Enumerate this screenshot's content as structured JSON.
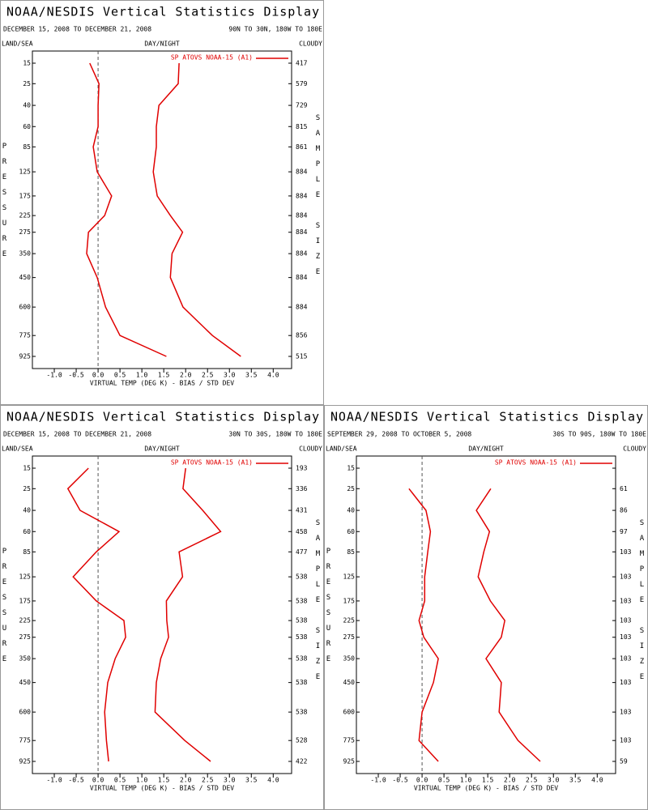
{
  "chart_data": [
    {
      "type": "line",
      "title": "NOAA/NESDIS Vertical Statistics Display",
      "date_range": "DECEMBER 15, 2008 TO DECEMBER 21, 2008",
      "region": "90N TO 30N, 180W TO 180E",
      "land_sea_label": "LAND/SEA",
      "day_night_label": "DAY/NIGHT",
      "cloudy_label": "CLOUDY",
      "ylabel": "PRESSURE",
      "y2label": "SAMPLE SIZE",
      "xlabel": "VIRTUAL TEMP (DEG K) - BIAS / STD DEV",
      "y": [
        15,
        25,
        40,
        60,
        85,
        125,
        175,
        225,
        275,
        350,
        450,
        600,
        775,
        925
      ],
      "sample_size": [
        417,
        579,
        729,
        815,
        861,
        884,
        884,
        884,
        884,
        884,
        884,
        884,
        856,
        515
      ],
      "series": [
        {
          "name": "SP ATOVS NOAA-15 (A1)",
          "color": "#e00000",
          "bias": [
            -0.19,
            0.02,
            0,
            0,
            -0.11,
            -0.02,
            0.31,
            0.15,
            -0.22,
            -0.26,
            -0.02,
            0.17,
            0.5,
            1.56
          ],
          "std_dev": [
            1.85,
            1.83,
            1.39,
            1.33,
            1.33,
            1.26,
            1.35,
            1.65,
            1.93,
            1.69,
            1.65,
            1.94,
            2.61,
            3.26
          ]
        }
      ],
      "xlim": [
        -1.5,
        4.42
      ],
      "xticks": [
        {
          "value": -1,
          "label": "-1.0"
        },
        {
          "value": -0.5,
          "label": "-0.5"
        },
        {
          "value": 0,
          "label": "0.0"
        },
        {
          "value": 0.5,
          "label": "0.5"
        },
        {
          "value": 1,
          "label": "1.0"
        },
        {
          "value": 1.5,
          "label": "1.5"
        },
        {
          "value": 2,
          "label": "2.0"
        },
        {
          "value": 2.5,
          "label": "2.5"
        },
        {
          "value": 3,
          "label": "3.0"
        },
        {
          "value": 3.5,
          "label": "3.5"
        },
        {
          "value": 4,
          "label": "4.0"
        }
      ]
    },
    {
      "type": "line",
      "title": "NOAA/NESDIS Vertical Statistics Display",
      "date_range": "DECEMBER 15, 2008 TO DECEMBER 21, 2008",
      "region": "30N TO 30S, 180W TO 180E",
      "land_sea_label": "LAND/SEA",
      "day_night_label": "DAY/NIGHT",
      "cloudy_label": "CLOUDY",
      "ylabel": "PRESSURE",
      "y2label": "SAMPLE SIZE",
      "xlabel": "VIRTUAL TEMP (DEG K) - BIAS / STD DEV",
      "y": [
        15,
        25,
        40,
        60,
        85,
        125,
        175,
        225,
        275,
        350,
        450,
        600,
        775,
        925
      ],
      "sample_size": [
        193,
        336,
        431,
        458,
        477,
        538,
        538,
        538,
        538,
        538,
        538,
        538,
        528,
        422
      ],
      "series": [
        {
          "name": "SP ATOVS NOAA-15 (A1)",
          "color": "#e00000",
          "bias": [
            -0.22,
            -0.69,
            -0.41,
            0.48,
            -0.04,
            -0.57,
            -0.04,
            0.59,
            0.63,
            0.39,
            0.22,
            0.15,
            0.19,
            0.24
          ],
          "std_dev": [
            2.0,
            1.94,
            2.39,
            2.8,
            1.85,
            1.93,
            1.56,
            1.57,
            1.61,
            1.43,
            1.33,
            1.3,
            1.98,
            2.57
          ]
        }
      ],
      "xlim": [
        -1.5,
        4.42
      ],
      "xticks": [
        {
          "value": -1,
          "label": "-1.0"
        },
        {
          "value": -0.5,
          "label": "-0.5"
        },
        {
          "value": 0,
          "label": "0.0"
        },
        {
          "value": 0.5,
          "label": "0.5"
        },
        {
          "value": 1,
          "label": "1.0"
        },
        {
          "value": 1.5,
          "label": "1.5"
        },
        {
          "value": 2,
          "label": "2.0"
        },
        {
          "value": 2.5,
          "label": "2.5"
        },
        {
          "value": 3,
          "label": "3.0"
        },
        {
          "value": 3.5,
          "label": "3.5"
        },
        {
          "value": 4,
          "label": "4.0"
        }
      ]
    },
    {
      "type": "line",
      "title": "NOAA/NESDIS Vertical Statistics Display",
      "date_range": "SEPTEMBER 29, 2008 TO OCTOBER 5, 2008",
      "region": "30S TO 90S, 180W TO 180E",
      "land_sea_label": "LAND/SEA",
      "day_night_label": "DAY/NIGHT",
      "cloudy_label": "CLOUDY",
      "ylabel": "PRESSURE",
      "y2label": "SAMPLE SIZE",
      "xlabel": "VIRTUAL TEMP (DEG K) - BIAS / STD DEV",
      "y": [
        15,
        25,
        40,
        60,
        85,
        125,
        175,
        225,
        275,
        350,
        450,
        600,
        775,
        925
      ],
      "sample_size": [
        null,
        61,
        86,
        97,
        103,
        103,
        103,
        103,
        103,
        103,
        103,
        103,
        103,
        59
      ],
      "series": [
        {
          "name": "SP ATOVS NOAA-15 (A1)",
          "color": "#e00000",
          "bias": [
            null,
            -0.3,
            0.09,
            0.19,
            0.13,
            0.06,
            0.06,
            -0.07,
            0.04,
            0.37,
            0.26,
            0,
            -0.07,
            0.37
          ],
          "std_dev": [
            null,
            1.57,
            1.24,
            1.54,
            1.41,
            1.28,
            1.56,
            1.89,
            1.81,
            1.46,
            1.81,
            1.76,
            2.19,
            2.7
          ]
        }
      ],
      "xlim": [
        -1.5,
        4.42
      ],
      "xticks": [
        {
          "value": -1,
          "label": "-1.0"
        },
        {
          "value": -0.5,
          "label": "-0.5"
        },
        {
          "value": 0,
          "label": "0.0"
        },
        {
          "value": 0.5,
          "label": "0.5"
        },
        {
          "value": 1,
          "label": "1.0"
        },
        {
          "value": 1.5,
          "label": "1.5"
        },
        {
          "value": 2,
          "label": "2.0"
        },
        {
          "value": 2.5,
          "label": "2.5"
        },
        {
          "value": 3,
          "label": "3.0"
        },
        {
          "value": 3.5,
          "label": "3.5"
        },
        {
          "value": 4,
          "label": "4.0"
        }
      ]
    }
  ]
}
